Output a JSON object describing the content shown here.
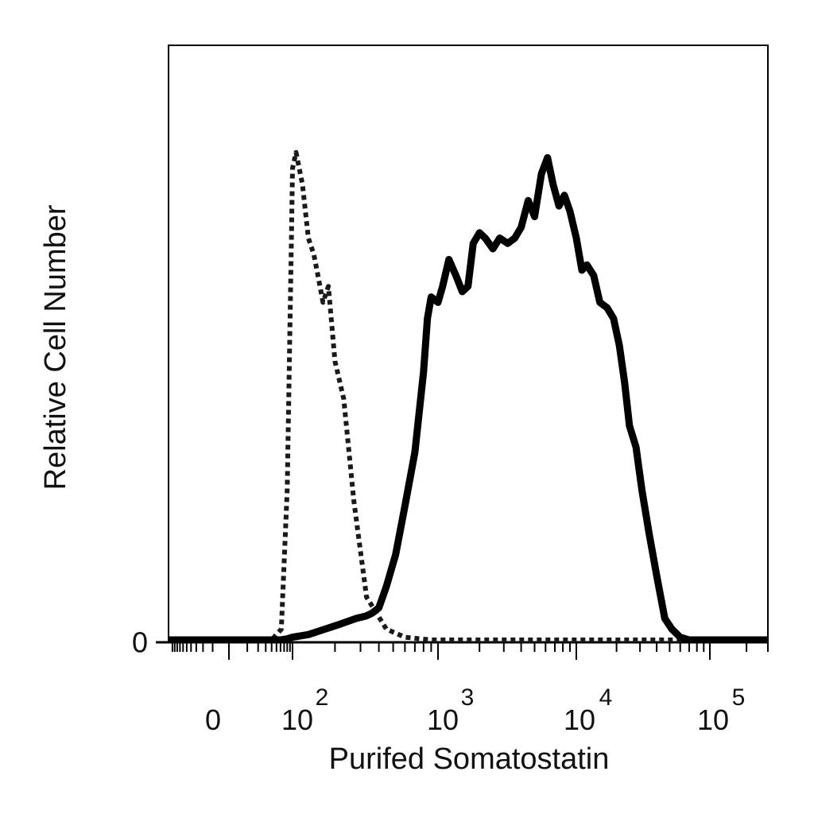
{
  "chart_data": {
    "type": "line",
    "title": "",
    "xlabel": "Purifed Somatostatin",
    "ylabel": "Relative Cell Number",
    "xscale": "biexponential",
    "xlim": [
      -120,
      300000
    ],
    "ylim": [
      0,
      100
    ],
    "grid": false,
    "legend": "none",
    "y_ticks": [
      {
        "value": 0,
        "label": "0"
      }
    ],
    "x_ticks": [
      {
        "value": 0,
        "base": "0",
        "exp": ""
      },
      {
        "value": 100,
        "base": "10",
        "exp": "2"
      },
      {
        "value": 1000,
        "base": "10",
        "exp": "3"
      },
      {
        "value": 10000,
        "base": "10",
        "exp": "4"
      },
      {
        "value": 100000,
        "base": "10",
        "exp": "5"
      }
    ],
    "series": [
      {
        "style": "dotted",
        "color": "#1a1a1a",
        "x": [
          -120,
          40,
          62,
          80,
          95,
          100,
          106,
          118,
          130,
          142,
          152,
          165,
          180,
          200,
          230,
          270,
          330,
          450,
          600,
          900,
          3000,
          20000,
          300000
        ],
        "y": [
          0,
          0,
          2,
          28,
          73,
          88,
          91,
          85,
          75,
          72,
          68,
          63,
          66,
          52,
          45,
          26,
          8,
          2,
          0.5,
          0,
          0,
          0,
          0
        ]
      },
      {
        "style": "solid",
        "color": "#000000",
        "x": [
          -120,
          40,
          60,
          80,
          100,
          130,
          170,
          220,
          280,
          330,
          360,
          400,
          450,
          520,
          600,
          700,
          800,
          850,
          900,
          1000,
          1080,
          1200,
          1350,
          1500,
          1650,
          1800,
          2000,
          2200,
          2500,
          2800,
          3200,
          3600,
          4000,
          4500,
          5000,
          5600,
          6200,
          6800,
          7500,
          8200,
          9000,
          10000,
          11000,
          12000,
          13500,
          15000,
          17000,
          19000,
          21000,
          23000,
          25000,
          28000,
          31000,
          35000,
          40000,
          46000,
          52000,
          60000,
          70000,
          80000,
          90000,
          100000,
          120000,
          150000,
          180000,
          300000
        ],
        "y": [
          0,
          0,
          0,
          0.2,
          0.5,
          1,
          2,
          3,
          4,
          4.5,
          5,
          6,
          10,
          16,
          25,
          35,
          50,
          60,
          64,
          63,
          66,
          71,
          68,
          65,
          66,
          74,
          76,
          75,
          73,
          75,
          74,
          75,
          77,
          82,
          79,
          87,
          90,
          85,
          81,
          83,
          80,
          75,
          69,
          70,
          68,
          63,
          62,
          60,
          55,
          48,
          40,
          36,
          28,
          20,
          12,
          4,
          2,
          0.5,
          0,
          0,
          0,
          0,
          0,
          0,
          0,
          0
        ]
      }
    ]
  }
}
